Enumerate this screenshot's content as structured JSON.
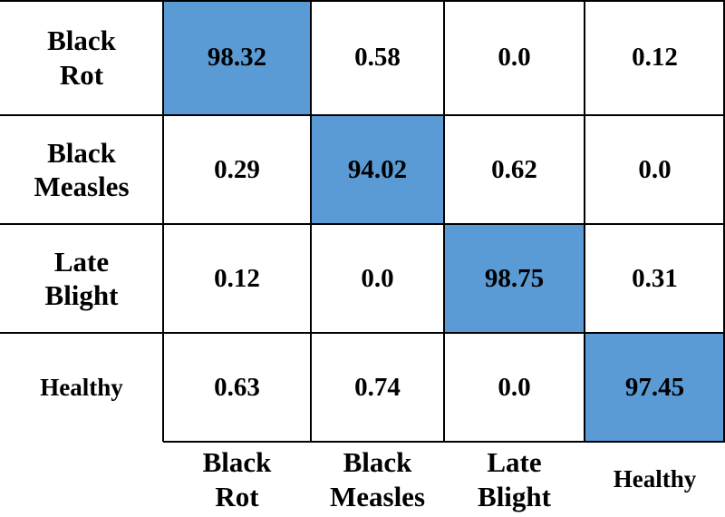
{
  "table": {
    "row_labels": [
      "Black Rot",
      "Black Measles",
      "Late Blight",
      "Healthy"
    ],
    "column_labels": [
      "Black Rot",
      "Black Measles",
      "Late Blight",
      "Healthy"
    ],
    "rows": [
      [
        "98.32",
        "0.58",
        "0.0",
        "0.12"
      ],
      [
        "0.29",
        "94.02",
        "0.62",
        "0.0"
      ],
      [
        "0.12",
        "0.0",
        "98.75",
        "0.31"
      ],
      [
        "0.63",
        "0.74",
        "0.0",
        "97.45"
      ]
    ],
    "highlight_color": "#5b9bd5"
  }
}
